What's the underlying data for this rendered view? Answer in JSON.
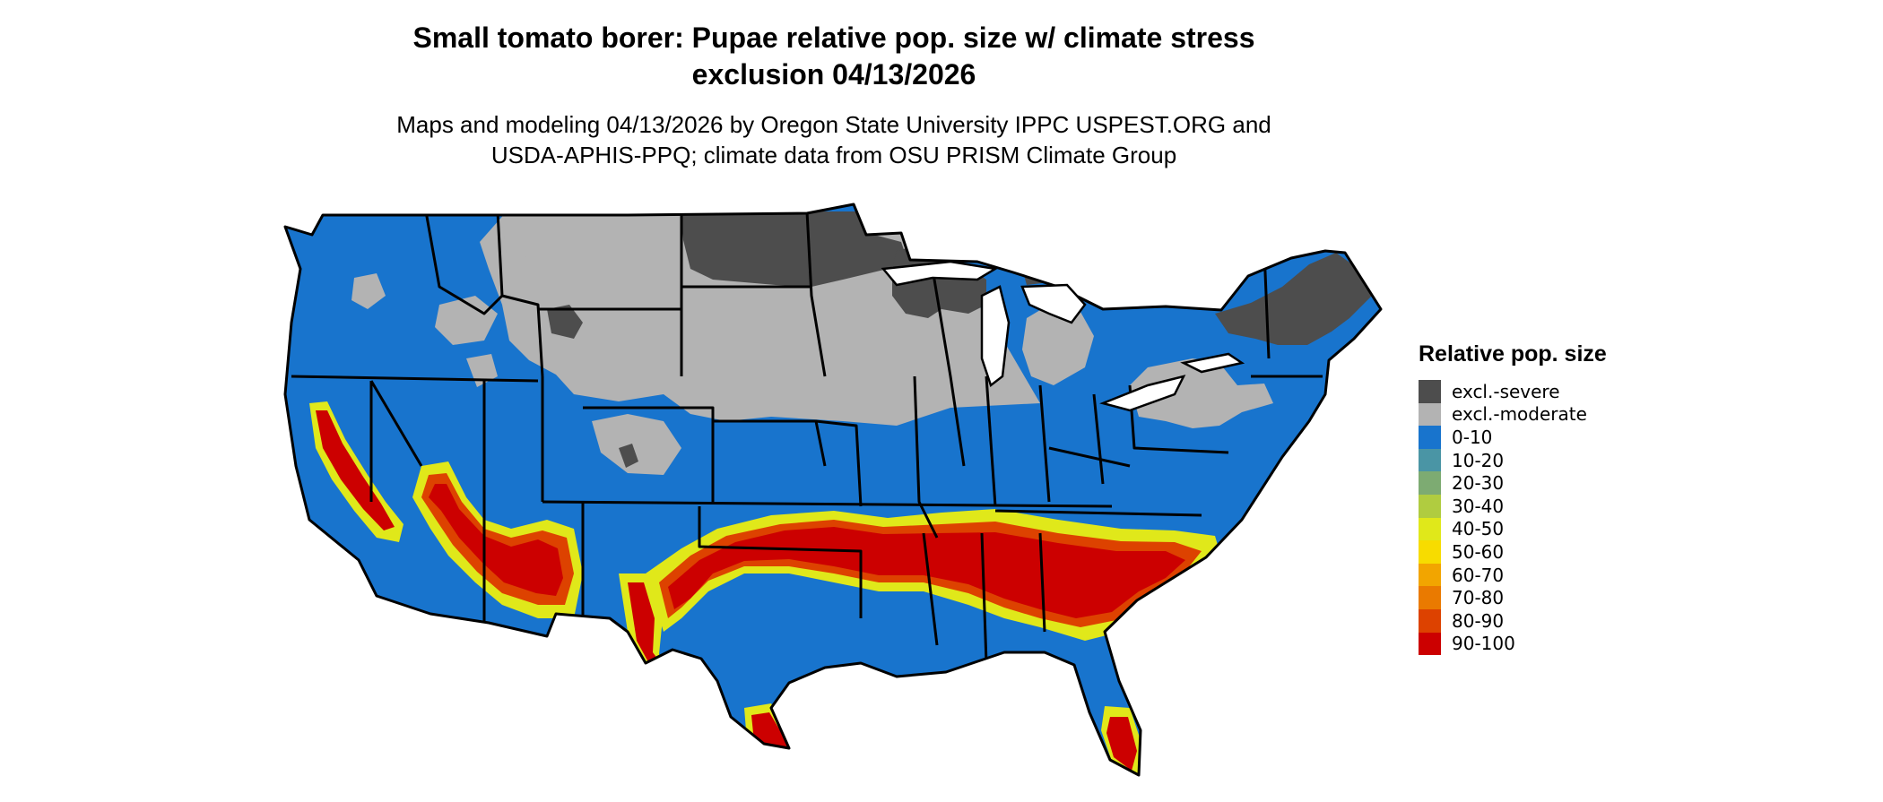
{
  "title_line1": "Small tomato borer: Pupae relative pop. size w/ climate stress",
  "title_line2": "exclusion 04/13/2026",
  "subtitle_line1": "Maps and modeling 04/13/2026 by Oregon State University IPPC USPEST.ORG and",
  "subtitle_line2": "USDA-APHIS-PPQ; climate data from OSU PRISM Climate Group",
  "legend": {
    "title": "Relative pop. size",
    "items": [
      {
        "label": "excl.-severe",
        "color": "#4d4d4d"
      },
      {
        "label": "excl.-moderate",
        "color": "#b3b3b3"
      },
      {
        "label": "0-10",
        "color": "#1874cd"
      },
      {
        "label": "10-20",
        "color": "#4a95a5"
      },
      {
        "label": "20-30",
        "color": "#7dab72"
      },
      {
        "label": "30-40",
        "color": "#b0cc40"
      },
      {
        "label": "40-50",
        "color": "#e0e81a"
      },
      {
        "label": "50-60",
        "color": "#f7dc00"
      },
      {
        "label": "60-70",
        "color": "#f2a500"
      },
      {
        "label": "70-80",
        "color": "#ea7a00"
      },
      {
        "label": "80-90",
        "color": "#dd4200"
      },
      {
        "label": "90-100",
        "color": "#cc0000"
      }
    ]
  }
}
